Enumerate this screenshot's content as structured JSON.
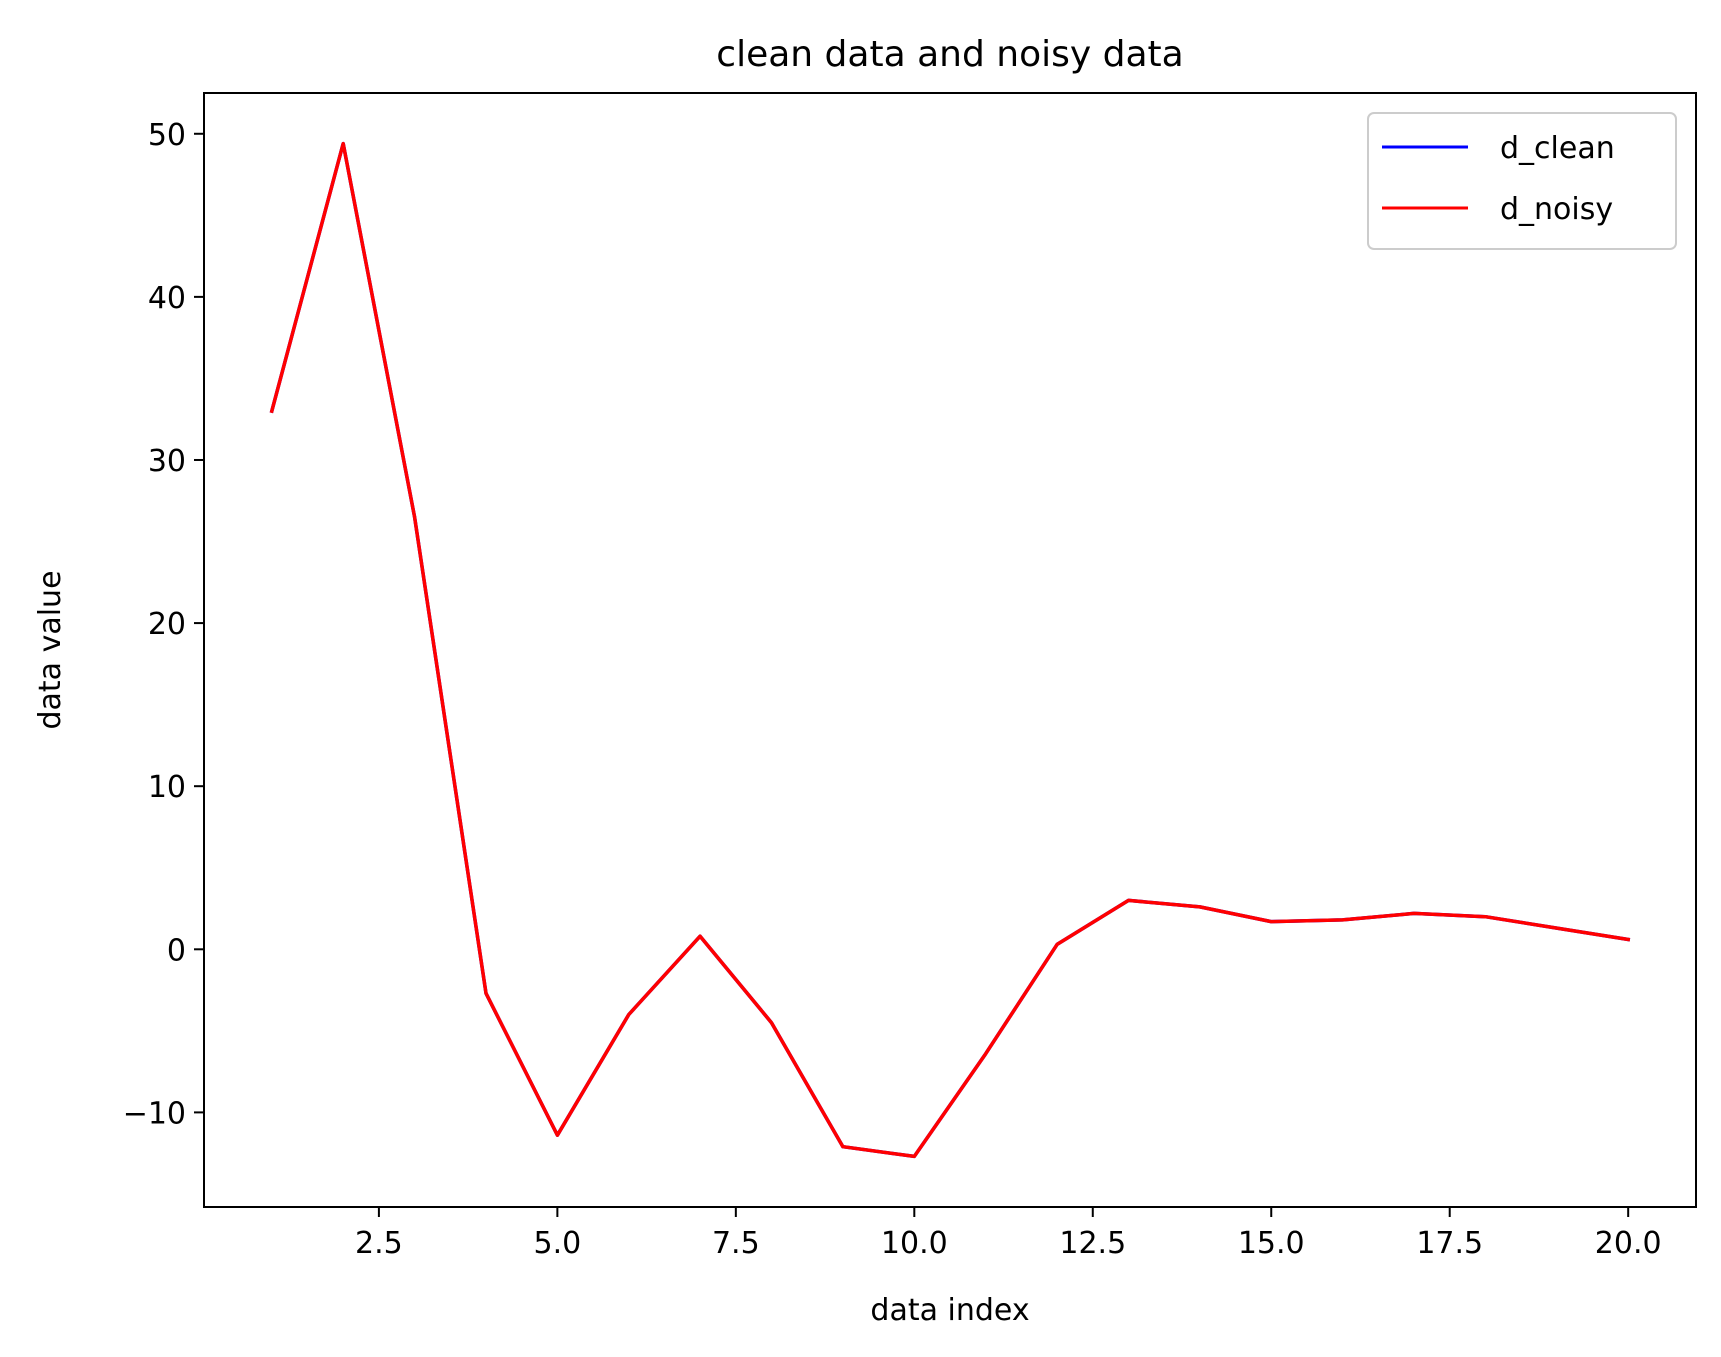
{
  "chart_data": {
    "type": "line",
    "title": "clean data and noisy data",
    "xlabel": "data index",
    "ylabel": "data value",
    "xlim": [
      0.05,
      20.95
    ],
    "ylim": [
      -15.8,
      52.5
    ],
    "xticks": [
      2.5,
      5.0,
      7.5,
      10.0,
      12.5,
      15.0,
      17.5,
      20.0
    ],
    "xtick_labels": [
      "2.5",
      "5.0",
      "7.5",
      "10.0",
      "12.5",
      "15.0",
      "17.5",
      "20.0"
    ],
    "yticks": [
      -10,
      0,
      10,
      20,
      30,
      40,
      50
    ],
    "ytick_labels": [
      "−10",
      "0",
      "10",
      "20",
      "30",
      "40",
      "50"
    ],
    "grid": false,
    "legend_position": "top-right",
    "x": [
      1,
      2,
      3,
      4,
      5,
      6,
      7,
      8,
      9,
      10,
      11,
      12,
      13,
      14,
      15,
      16,
      17,
      18,
      19,
      20
    ],
    "series": [
      {
        "name": "d_clean",
        "color": "#0000ff",
        "values": [
          33.0,
          49.4,
          26.5,
          -2.7,
          -11.4,
          -4.0,
          0.8,
          -4.5,
          -12.1,
          -12.7,
          -6.4,
          0.3,
          3.0,
          2.6,
          1.7,
          1.8,
          2.2,
          2.0,
          1.3,
          0.6
        ]
      },
      {
        "name": "d_noisy",
        "color": "#ff0000",
        "values": [
          33.0,
          49.4,
          26.5,
          -2.7,
          -11.4,
          -4.0,
          0.8,
          -4.5,
          -12.1,
          -12.7,
          -6.4,
          0.3,
          3.0,
          2.6,
          1.7,
          1.8,
          2.2,
          2.0,
          1.3,
          0.6
        ]
      }
    ]
  }
}
